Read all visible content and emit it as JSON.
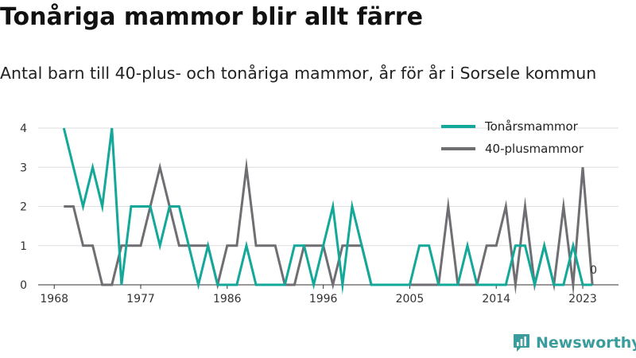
{
  "title": "Tonåriga mammor blir allt färre",
  "subtitle": "Antal barn till 40-plus- och tonåriga mammor, år för år i Sorsele kommun",
  "brand": {
    "name": "Newsworthy",
    "color": "#3a9c9c"
  },
  "chart_data": {
    "type": "line",
    "x": [
      1969,
      1970,
      1971,
      1972,
      1973,
      1974,
      1975,
      1976,
      1977,
      1978,
      1979,
      1980,
      1981,
      1982,
      1983,
      1984,
      1985,
      1986,
      1987,
      1988,
      1989,
      1990,
      1991,
      1992,
      1993,
      1994,
      1995,
      1996,
      1997,
      1998,
      1999,
      2000,
      2001,
      2002,
      2003,
      2004,
      2005,
      2006,
      2007,
      2008,
      2009,
      2010,
      2011,
      2012,
      2013,
      2014,
      2015,
      2016,
      2017,
      2018,
      2019,
      2020,
      2021,
      2022,
      2023,
      2024
    ],
    "series": [
      {
        "name": "Tonårsmammor",
        "color": "#13a899",
        "values": [
          4,
          3,
          2,
          3,
          2,
          4,
          0,
          2,
          2,
          2,
          1,
          2,
          2,
          1,
          0,
          1,
          0,
          0,
          0,
          1,
          0,
          0,
          0,
          0,
          1,
          1,
          0,
          1,
          2,
          0,
          2,
          1,
          0,
          0,
          0,
          0,
          0,
          1,
          1,
          0,
          0,
          0,
          1,
          0,
          0,
          0,
          0,
          1,
          1,
          0,
          1,
          0,
          0,
          1,
          0,
          0
        ]
      },
      {
        "name": "40-plusmammor",
        "color": "#6e6e73",
        "values": [
          2,
          2,
          1,
          1,
          0,
          0,
          1,
          1,
          1,
          2,
          3,
          2,
          1,
          1,
          1,
          1,
          0,
          1,
          1,
          3,
          1,
          1,
          1,
          0,
          0,
          1,
          1,
          1,
          0,
          1,
          1,
          1,
          0,
          0,
          0,
          0,
          0,
          0,
          0,
          0,
          2,
          0,
          0,
          0,
          1,
          1,
          2,
          0,
          2,
          0,
          1,
          0,
          2,
          0,
          3,
          0
        ]
      }
    ],
    "end_label": "0",
    "ylim": [
      0,
      4
    ],
    "yticks": [
      "0",
      "1",
      "2",
      "3",
      "4"
    ],
    "xticks": [
      "1968",
      "1977",
      "1986",
      "1996",
      "2005",
      "2014",
      "2023"
    ],
    "xtick_years": [
      1968,
      1977,
      1986,
      1996,
      2005,
      2014,
      2023
    ],
    "grid": true,
    "legend_position": "top-right"
  }
}
